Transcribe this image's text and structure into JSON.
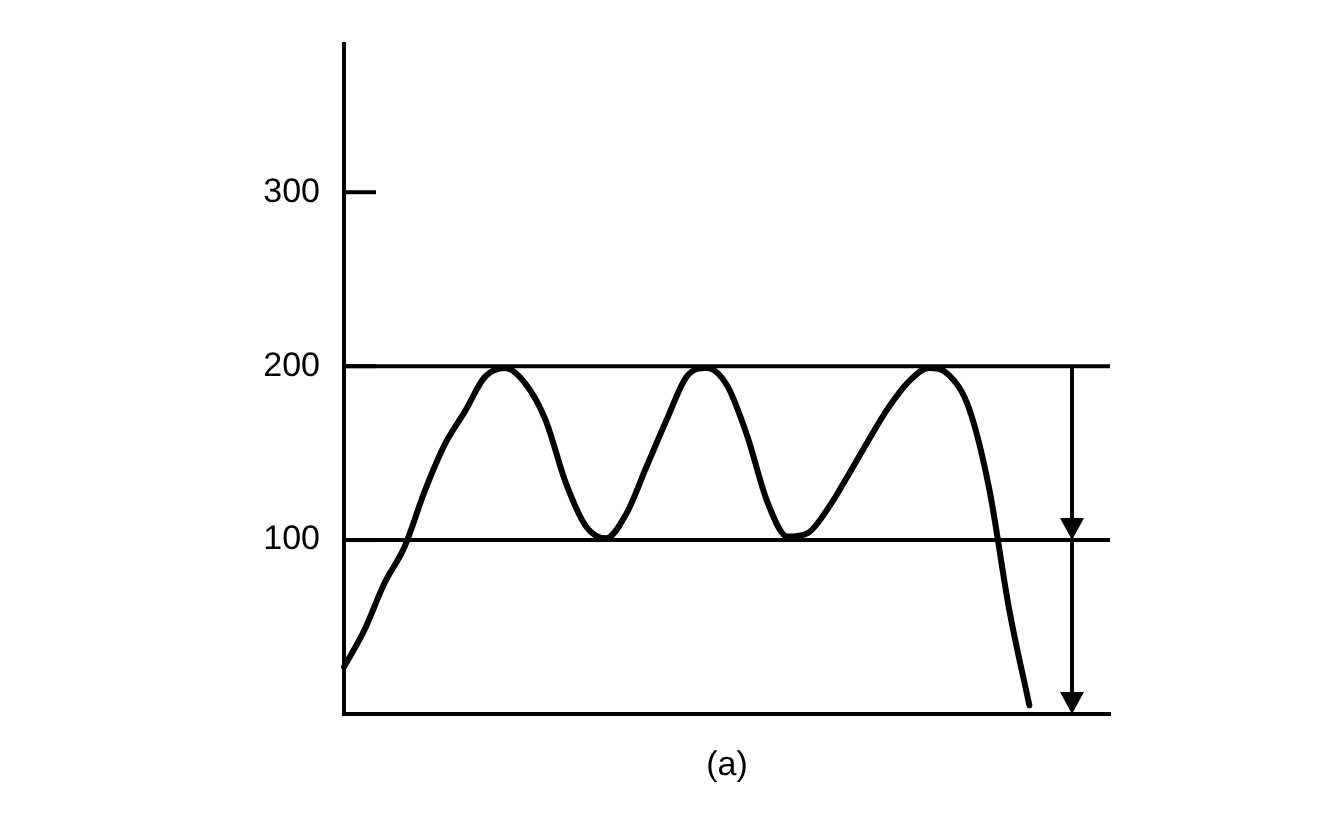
{
  "chart_data": {
    "type": "line",
    "categories": [
      null,
      null,
      null,
      null,
      null,
      null,
      null,
      null,
      null,
      null,
      null,
      null,
      null,
      null,
      null,
      null,
      null,
      null,
      null,
      null,
      null,
      null,
      null,
      null,
      null,
      null,
      null,
      null,
      null,
      null,
      null,
      null,
      null,
      null,
      null,
      null,
      null,
      null,
      null
    ],
    "series": [
      {
        "color": "#000000",
        "values": [
          27,
          48,
          75,
          96,
          128,
          155,
          174,
          194,
          199,
          190,
          169,
          133,
          108,
          101,
          115,
          142,
          169,
          194,
          199,
          189,
          160,
          122,
          102,
          104,
          118,
          137,
          157,
          176,
          191,
          199,
          195,
          176,
          130,
          60,
          5,
          null,
          null,
          null,
          null
        ]
      }
    ],
    "ylim": [
      0,
      385
    ],
    "yticks": [
      100,
      200,
      300
    ],
    "grid": false,
    "legend": false,
    "marker": "none",
    "line_style": "solid",
    "tick_labels": "y",
    "ref_lines": [
      {
        "axis": "y",
        "value": 200,
        "color": "#000000"
      },
      {
        "axis": "y",
        "value": 100,
        "color": "#000000"
      }
    ],
    "annotations": [
      "(a)"
    ]
  }
}
